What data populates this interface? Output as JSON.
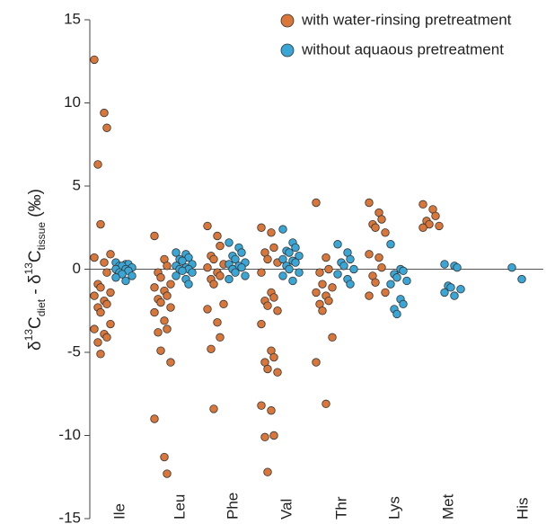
{
  "chart_data": {
    "type": "strip",
    "y_label_parts": [
      "δ",
      "13",
      "C",
      "diet",
      " - δ",
      "13",
      "C",
      "tissue",
      " (‰)"
    ],
    "categories": [
      "Ile",
      "Leu",
      "Phe",
      "Val",
      "Thr",
      "Lys",
      "Met",
      "His"
    ],
    "ylim": [
      -15,
      15
    ],
    "yticks": [
      -15,
      -10,
      -5,
      0,
      5,
      10,
      15
    ],
    "legend": "upper right",
    "series": [
      {
        "name": "with water-rinsing pretreatment",
        "color": "#d9773a",
        "values": [
          [
            12.6,
            9.4,
            8.5,
            6.3,
            2.7,
            0.9,
            0.7,
            0.4,
            -0.2,
            -0.9,
            -1.1,
            -1.4,
            -1.6,
            -1.9,
            -2.1,
            -2.3,
            -2.6,
            -3.3,
            -3.6,
            -3.9,
            -4.1,
            -4.4,
            -5.1
          ],
          [
            2.0,
            0.6,
            0.2,
            -0.2,
            -0.5,
            -0.9,
            -1.1,
            -1.3,
            -1.6,
            -1.8,
            -2.0,
            -2.3,
            -2.6,
            -3.1,
            -3.6,
            -3.8,
            -4.9,
            -5.6,
            -9.0,
            -11.3,
            -12.3
          ],
          [
            2.6,
            2.0,
            1.4,
            0.8,
            0.6,
            0.3,
            0.1,
            -0.2,
            -0.4,
            -0.6,
            -0.9,
            -2.1,
            -2.4,
            -3.2,
            -4.1,
            -4.8,
            -8.4
          ],
          [
            2.5,
            2.2,
            1.3,
            1.0,
            0.6,
            0.4,
            -0.2,
            -1.4,
            -1.7,
            -1.9,
            -2.2,
            -2.5,
            -3.3,
            -4.9,
            -5.3,
            -5.6,
            -6.0,
            -6.2,
            -8.2,
            -8.5,
            -10.0,
            -10.1,
            -12.2
          ],
          [
            4.0,
            0.7,
            0.0,
            -0.2,
            -0.9,
            -1.1,
            -1.4,
            -1.6,
            -1.9,
            -2.1,
            -2.5,
            -4.1,
            -5.6,
            -8.1
          ],
          [
            4.0,
            3.4,
            3.0,
            2.7,
            2.5,
            2.2,
            0.9,
            0.7,
            0.1,
            -0.4,
            -0.8,
            -1.4,
            -1.6
          ],
          [
            3.9,
            3.6,
            3.2,
            2.9,
            2.7,
            2.6,
            2.5
          ],
          []
        ]
      },
      {
        "name": "without aquaous pretreatment",
        "color": "#3aa6d6",
        "values": [
          [
            0.4,
            0.3,
            0.3,
            0.2,
            0.2,
            0.1,
            0.0,
            0.0,
            -0.1,
            -0.2,
            -0.3,
            -0.4,
            -0.5,
            -0.7
          ],
          [
            1.0,
            0.9,
            0.7,
            0.6,
            0.5,
            0.3,
            0.2,
            0.1,
            0.0,
            0.0,
            -0.1,
            -0.2,
            -0.4,
            -0.6,
            -0.9
          ],
          [
            1.6,
            1.3,
            1.0,
            0.8,
            0.6,
            0.4,
            0.3,
            0.2,
            0.1,
            0.0,
            -0.2,
            -0.4,
            -0.6
          ],
          [
            2.4,
            1.6,
            1.3,
            1.1,
            1.0,
            0.8,
            0.6,
            0.5,
            0.4,
            0.2,
            0.0,
            -0.2,
            -0.4,
            -0.7
          ],
          [
            1.5,
            1.0,
            0.6,
            0.4,
            0.2,
            0.0,
            -0.3,
            -0.6,
            -0.9
          ],
          [
            1.5,
            0.0,
            -0.1,
            -0.3,
            -0.5,
            -0.7,
            -0.9,
            -1.8,
            -2.1,
            -2.4,
            -2.7
          ],
          [
            0.3,
            0.2,
            0.1,
            -1.0,
            -1.1,
            -1.2,
            -1.4,
            -1.6
          ],
          [
            0.1,
            -0.6
          ]
        ]
      }
    ]
  }
}
